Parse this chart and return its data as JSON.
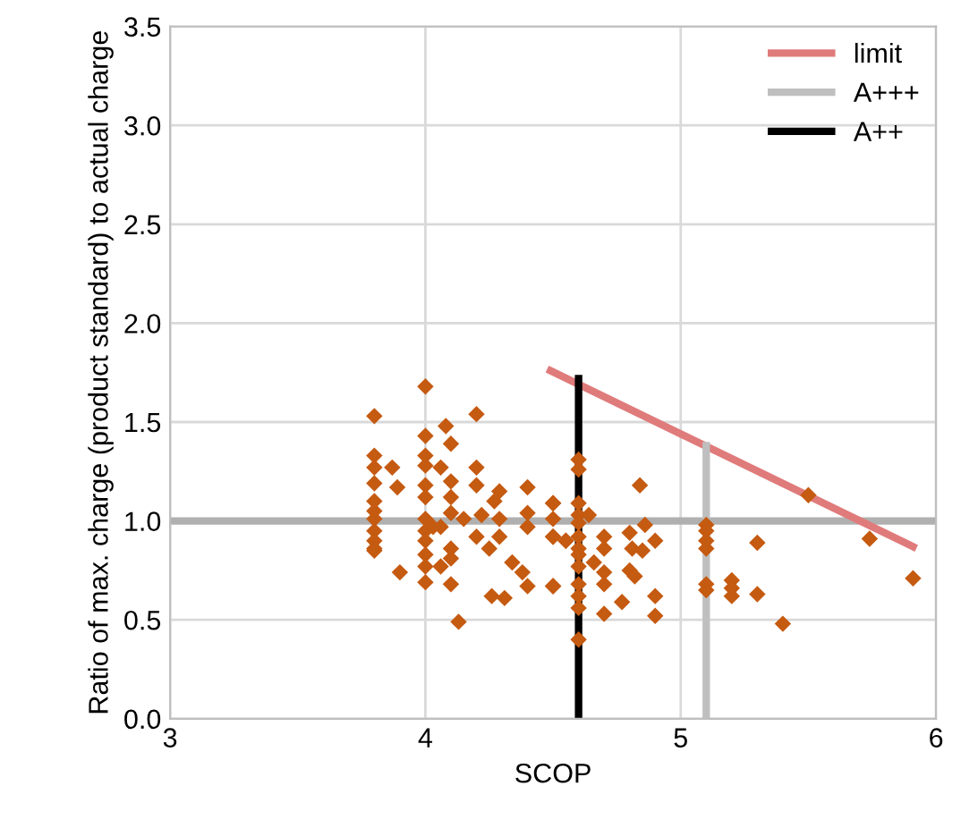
{
  "chart_data": {
    "type": "scatter",
    "xlabel": "SCOP",
    "ylabel": "Ratio of max. charge (product standard) to actual charge",
    "xlim": [
      3,
      6
    ],
    "ylim": [
      0,
      3.5
    ],
    "xticks": [
      3,
      4,
      5,
      6
    ],
    "yticks": [
      {
        "value": 0,
        "label": "0.0"
      },
      {
        "value": 0.5,
        "label": "0.5"
      },
      {
        "value": 1,
        "label": "1.0"
      },
      {
        "value": 1.5,
        "label": "1.5"
      },
      {
        "value": 2,
        "label": "2.0"
      },
      {
        "value": 2.5,
        "label": "2.5"
      },
      {
        "value": 3,
        "label": "3.0"
      },
      {
        "value": 3.5,
        "label": "3.5"
      }
    ],
    "grid": true,
    "legend": "top right",
    "ref_lines": [
      {
        "axis": "y",
        "value": 1,
        "color": "#b0b0b0"
      }
    ],
    "series": [
      {
        "marker": "diamond",
        "color": "#c55a11",
        "x": [
          3.8,
          3.8,
          3.8,
          3.8,
          3.8,
          3.8,
          3.8,
          3.8,
          3.8,
          3.8,
          3.87,
          3.89,
          3.9,
          3.8,
          4.0,
          4.0,
          4.0,
          4.0,
          4.0,
          4.0,
          4.0,
          4.0,
          4.0,
          4.0,
          4.0,
          4.0,
          4.08,
          4.1,
          4.2,
          4.06,
          4.1,
          4.2,
          4.2,
          4.1,
          4.1,
          4.06,
          4.03,
          4.15,
          4.22,
          4.29,
          4.27,
          4.29,
          4.2,
          4.1,
          4.1,
          4.06,
          4.25,
          4.29,
          4.34,
          4.38,
          4.4,
          4.4,
          4.4,
          4.4,
          4.1,
          4.13,
          4.26,
          4.31,
          4.5,
          4.5,
          4.5,
          4.5,
          4.55,
          4.6,
          4.6,
          4.6,
          4.6,
          4.6,
          4.6,
          4.6,
          4.6,
          4.6,
          4.6,
          4.6,
          4.6,
          4.6,
          4.5,
          4.5,
          4.55,
          4.5,
          4.64,
          4.66,
          4.7,
          4.7,
          4.7,
          4.7,
          4.7,
          4.77,
          4.8,
          4.81,
          4.8,
          4.82,
          4.84,
          4.85,
          4.86,
          4.9,
          4.9,
          4.9,
          5.1,
          5.1,
          5.1,
          5.1,
          5.1,
          5.1,
          5.2,
          5.2,
          5.2,
          5.5,
          5.3,
          5.3,
          5.4,
          5.74,
          5.91
        ],
        "values": [
          1.53,
          1.33,
          1.27,
          1.19,
          1.1,
          1.05,
          1.01,
          0.95,
          0.9,
          0.85,
          1.27,
          1.17,
          0.74,
          0.86,
          1.68,
          1.43,
          1.33,
          1.28,
          1.18,
          1.12,
          1.01,
          0.95,
          0.9,
          0.83,
          0.77,
          0.69,
          1.48,
          1.39,
          1.54,
          1.27,
          1.2,
          1.27,
          1.18,
          1.12,
          1.04,
          0.97,
          0.97,
          1.01,
          1.03,
          1.15,
          1.1,
          1.01,
          0.92,
          0.86,
          0.81,
          0.77,
          0.86,
          0.92,
          0.79,
          0.74,
          1.17,
          1.04,
          0.97,
          0.67,
          0.68,
          0.49,
          0.62,
          0.61,
          1.09,
          1.01,
          0.92,
          0.67,
          0.9,
          1.31,
          1.26,
          1.09,
          1.03,
          0.99,
          0.92,
          0.86,
          0.83,
          0.77,
          0.68,
          0.62,
          0.56,
          0.4,
          1.09,
          0.92,
          0.9,
          0.67,
          1.03,
          0.79,
          0.92,
          0.86,
          0.74,
          0.68,
          0.53,
          0.59,
          0.94,
          0.86,
          0.75,
          0.72,
          1.18,
          0.85,
          0.98,
          0.62,
          0.52,
          0.9,
          0.98,
          0.95,
          0.9,
          0.86,
          0.68,
          0.65,
          0.7,
          0.66,
          0.62,
          1.13,
          0.89,
          0.63,
          0.48,
          0.91,
          0.71
        ]
      },
      {
        "type": "line",
        "marker": "none",
        "name": "limit",
        "color": "#e07b7b",
        "x": [
          4.49,
          5.91
        ],
        "values": [
          1.76,
          0.87
        ]
      },
      {
        "type": "line",
        "marker": "none",
        "name": "A+++",
        "color": "#bfbfbf",
        "x": [
          5.1,
          5.1
        ],
        "values": [
          0,
          1.38
        ]
      },
      {
        "type": "line",
        "marker": "none",
        "name": "A++",
        "color": "#000000",
        "x": [
          4.6,
          4.6
        ],
        "values": [
          0,
          1.72
        ]
      }
    ]
  }
}
